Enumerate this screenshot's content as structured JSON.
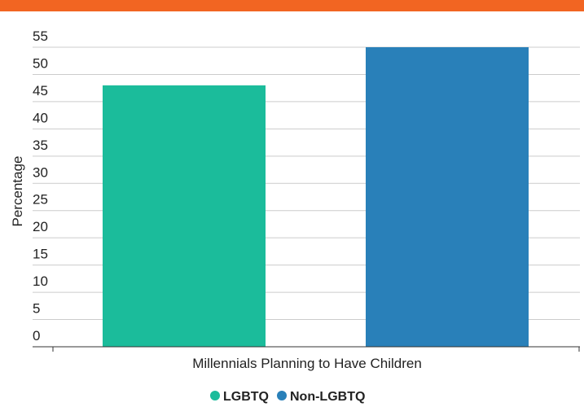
{
  "colors": {
    "top_bar": "#F26522",
    "grid": "#cccccc"
  },
  "chart_data": {
    "type": "bar",
    "categories": [
      "Millennials Planning to Have Children"
    ],
    "series": [
      {
        "name": "LGBTQ",
        "values": [
          48
        ],
        "color": "#1BBC9B"
      },
      {
        "name": "Non-LGBTQ",
        "values": [
          55
        ],
        "color": "#2980B9"
      }
    ],
    "xlabel": "Millennials Planning to Have Children",
    "ylabel": "Percentage",
    "ylim": [
      0,
      55
    ],
    "yticks": [
      0,
      5,
      10,
      15,
      20,
      25,
      30,
      35,
      40,
      45,
      50,
      55
    ],
    "grid": true,
    "legend": "bottom-center"
  }
}
